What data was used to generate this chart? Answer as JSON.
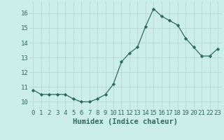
{
  "x": [
    0,
    1,
    2,
    3,
    4,
    5,
    6,
    7,
    8,
    9,
    10,
    11,
    12,
    13,
    14,
    15,
    16,
    17,
    18,
    19,
    20,
    21,
    22,
    23
  ],
  "y": [
    10.8,
    10.5,
    10.5,
    10.5,
    10.5,
    10.2,
    10.0,
    10.0,
    10.2,
    10.5,
    11.2,
    12.7,
    13.3,
    13.7,
    15.1,
    16.3,
    15.8,
    15.5,
    15.2,
    14.3,
    13.7,
    13.1,
    13.1,
    13.6
  ],
  "line_color": "#2e6b5e",
  "marker": "D",
  "marker_size": 2.2,
  "bg_color": "#cceee8",
  "grid_color": "#b8d8d2",
  "xlabel": "Humidex (Indice chaleur)",
  "ylim": [
    9.5,
    16.8
  ],
  "xlim": [
    -0.5,
    23.5
  ],
  "yticks": [
    10,
    11,
    12,
    13,
    14,
    15,
    16
  ],
  "xticks": [
    0,
    1,
    2,
    3,
    4,
    5,
    6,
    7,
    8,
    9,
    10,
    11,
    12,
    13,
    14,
    15,
    16,
    17,
    18,
    19,
    20,
    21,
    22,
    23
  ],
  "tick_fontsize": 6.5,
  "xlabel_fontsize": 7.5
}
